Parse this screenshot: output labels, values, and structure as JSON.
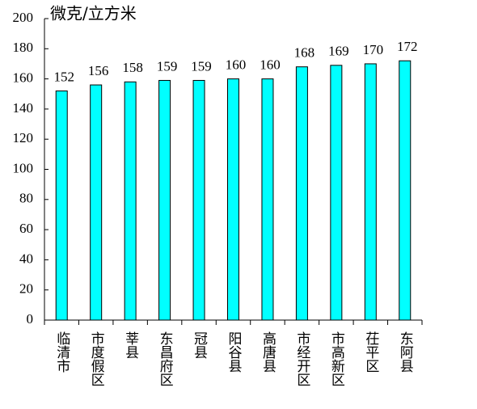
{
  "chart_data": {
    "type": "bar",
    "y_label": "微克/立方米",
    "categories": [
      "临清市",
      "市度假区",
      "莘县",
      "东昌府区",
      "冠县",
      "阳谷县",
      "高唐县",
      "市经开区",
      "市高新区",
      "茌平区",
      "东阿县"
    ],
    "values": [
      152,
      156,
      158,
      159,
      159,
      160,
      160,
      168,
      169,
      170,
      172
    ],
    "color": "#00ffff",
    "ylim": [
      0,
      200
    ],
    "yticks": [
      0,
      20,
      40,
      60,
      80,
      100,
      120,
      140,
      160,
      180,
      200
    ],
    "grid": false
  }
}
